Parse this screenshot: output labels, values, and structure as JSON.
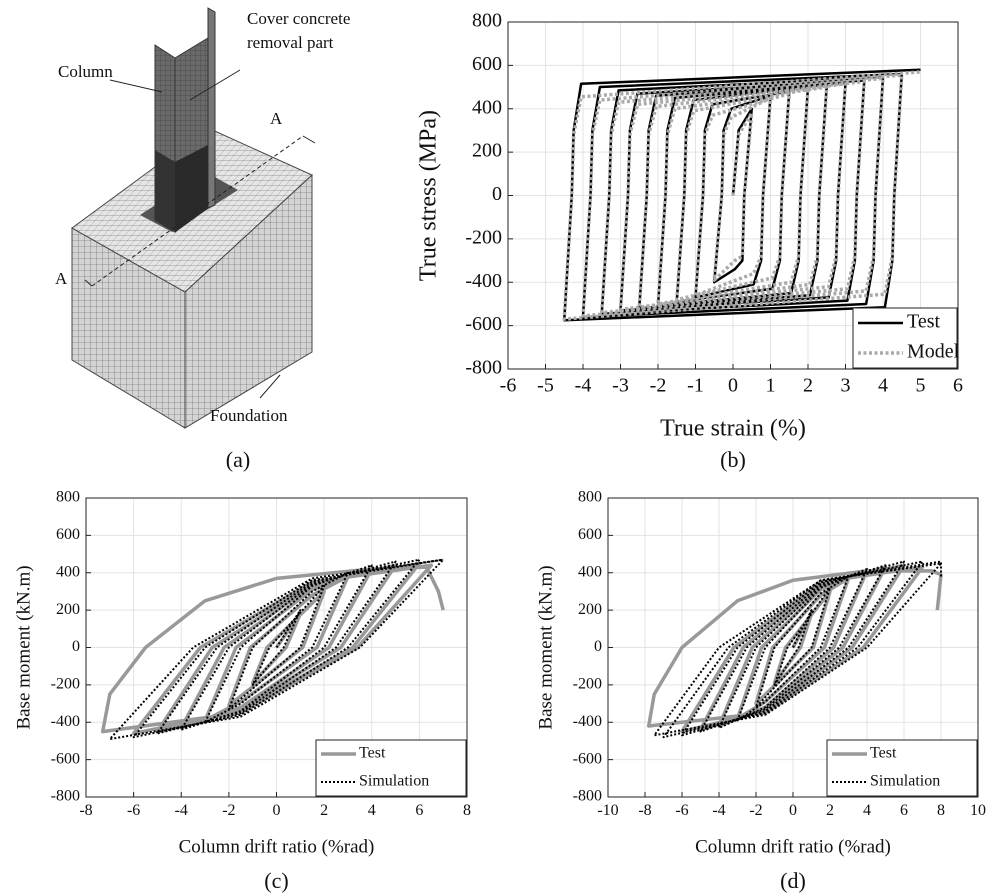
{
  "diagram": {
    "labels": {
      "column": "Column",
      "cover": [
        "Cover concrete",
        "removal part"
      ],
      "section_right": "A",
      "section_left": "A",
      "foundation": "Foundation"
    },
    "caption": "(a)"
  },
  "chart_data": [
    {
      "type": "line",
      "caption": "(b)",
      "x_label": "True strain (%)",
      "y_label": "True stress (MPa)",
      "xlim": [
        -6,
        6
      ],
      "xticks": [
        -6,
        -5,
        -4,
        -3,
        -2,
        -1,
        0,
        1,
        2,
        3,
        4,
        5,
        6
      ],
      "ylim": [
        -800,
        800
      ],
      "yticks": [
        -800,
        -600,
        -400,
        -200,
        0,
        200,
        400,
        600,
        800
      ],
      "grid": true,
      "legend": "bottom-right",
      "series": [
        {
          "name": "Test",
          "color": "#000000",
          "line_style": "solid",
          "x": [
            0,
            0.15,
            0.5,
            0.3,
            0.25,
            0.05,
            -0.5,
            -0.3,
            -0.25,
            -0.05,
            1,
            0.8,
            0.75,
            0.55,
            -1,
            -0.8,
            -0.75,
            -0.55,
            1.5,
            1.3,
            1.25,
            1.05,
            -1.5,
            -1.3,
            -1.25,
            -1.05,
            2,
            1.8,
            1.75,
            1.55,
            -2,
            -1.8,
            -1.75,
            -1.55,
            2.5,
            2.3,
            2.25,
            2.05,
            -2.5,
            -2.3,
            -2.25,
            -2.05,
            3,
            2.8,
            2.75,
            2.55,
            -3,
            -2.8,
            -2.75,
            -2.55,
            3.5,
            3.3,
            3.25,
            3.05,
            -3.5,
            -3.3,
            -3.25,
            -3.05,
            4,
            3.8,
            3.75,
            3.55,
            -4,
            -3.8,
            -3.75,
            -3.55,
            4.5,
            4.3,
            4.25,
            4.05,
            -4.5,
            -4.3,
            -4.25,
            -4.05,
            5
          ],
          "values": [
            0,
            300,
            400,
            0,
            -300,
            -340,
            -400,
            0,
            300,
            400,
            460,
            0,
            -300,
            -410,
            -470,
            0,
            300,
            420,
            480,
            0,
            -300,
            -430,
            -490,
            0,
            300,
            440,
            500,
            0,
            -300,
            -450,
            -510,
            0,
            300,
            450,
            510,
            0,
            -300,
            -460,
            -520,
            0,
            300,
            460,
            520,
            0,
            -300,
            -470,
            -530,
            0,
            300,
            470,
            530,
            0,
            -300,
            -485,
            -545,
            0,
            300,
            485,
            545,
            0,
            -300,
            -500,
            -560,
            0,
            300,
            500,
            560,
            0,
            -300,
            -515,
            -575,
            0,
            300,
            515,
            580
          ]
        },
        {
          "name": "Model",
          "color": "#aaaaaa",
          "line_style": "dotted",
          "x": [
            0,
            0.15,
            0.5,
            0.3,
            0.25,
            0.05,
            -0.5,
            -0.3,
            -0.25,
            -0.05,
            1,
            0.8,
            0.75,
            0.55,
            -1,
            -0.8,
            -0.75,
            -0.55,
            1.5,
            1.3,
            1.25,
            1.05,
            -1.5,
            -1.3,
            -1.25,
            -1.05,
            2,
            1.8,
            1.75,
            1.55,
            -2,
            -1.8,
            -1.75,
            -1.55,
            2.5,
            2.3,
            2.25,
            2.05,
            -2.5,
            -2.3,
            -2.25,
            -2.05,
            3,
            2.8,
            2.75,
            2.55,
            -3,
            -2.8,
            -2.75,
            -2.55,
            3.5,
            3.3,
            3.25,
            3.05,
            -3.5,
            -3.3,
            -3.25,
            -3.05,
            4,
            3.8,
            3.75,
            3.55,
            -4,
            -3.8,
            -3.75,
            -3.55,
            4.5,
            4.3,
            4.25,
            4.05,
            -4.5,
            -4.3,
            -4.25,
            -4.05,
            5
          ],
          "values": [
            0,
            280,
            380,
            0,
            -280,
            -300,
            -390,
            0,
            280,
            360,
            450,
            0,
            -280,
            -360,
            -460,
            0,
            280,
            370,
            470,
            0,
            -280,
            -380,
            -480,
            0,
            280,
            390,
            490,
            0,
            -280,
            -400,
            -500,
            0,
            280,
            400,
            500,
            0,
            -280,
            -410,
            -515,
            0,
            280,
            410,
            515,
            0,
            -280,
            -420,
            -525,
            0,
            280,
            420,
            525,
            0,
            -280,
            -430,
            -540,
            0,
            280,
            430,
            540,
            0,
            -280,
            -440,
            -555,
            0,
            280,
            440,
            555,
            0,
            -280,
            -455,
            -570,
            0,
            280,
            455,
            570
          ]
        }
      ]
    },
    {
      "type": "line",
      "caption": "(c)",
      "x_label": "Column drift ratio (%rad)",
      "y_label": "Base moment (kN.m)",
      "xlim": [
        -8,
        8
      ],
      "xticks": [
        -8,
        -6,
        -4,
        -2,
        0,
        2,
        4,
        6,
        8
      ],
      "ylim": [
        -800,
        800
      ],
      "yticks": [
        -800,
        -600,
        -400,
        -200,
        0,
        200,
        400,
        600,
        800
      ],
      "grid": true,
      "legend": "bottom-right",
      "series": [
        {
          "name": "Test",
          "color": "#999999",
          "line_style": "solid",
          "x": [
            0,
            1,
            0.4,
            -1,
            -0.4,
            2,
            1.1,
            -2,
            -1.1,
            1.5,
            3,
            1.7,
            -1.5,
            -3,
            -1.7,
            1.5,
            4,
            2.2,
            -1.5,
            -4,
            -2.2,
            1.5,
            5,
            2.7,
            -1.5,
            -5,
            -2.7,
            1.5,
            6,
            3.2,
            -1.5,
            -6,
            -3.2,
            1.5,
            6.5,
            3.4,
            -1.5,
            -7.3,
            -7,
            -5.5,
            -3,
            0,
            4,
            6.3,
            6.8,
            7
          ],
          "values": [
            0,
            180,
            0,
            -190,
            0,
            300,
            0,
            -310,
            0,
            280,
            380,
            0,
            -290,
            -390,
            0,
            310,
            420,
            0,
            -320,
            -430,
            0,
            330,
            440,
            0,
            -330,
            -450,
            0,
            340,
            450,
            0,
            -340,
            -460,
            0,
            350,
            440,
            0,
            -350,
            -450,
            -250,
            0,
            250,
            370,
            420,
            430,
            300,
            200
          ]
        },
        {
          "name": "Simulation",
          "color": "#000000",
          "line_style": "dotted",
          "x": [
            0,
            1,
            0.3,
            -1,
            -0.3,
            2,
            1,
            -2,
            -1,
            1.5,
            3,
            1.5,
            -1.5,
            -3,
            -1.5,
            1.5,
            4,
            2,
            -1.5,
            -4,
            -2,
            1.5,
            5,
            2.5,
            -1.5,
            -5,
            -2.5,
            1.5,
            6,
            3,
            -1.5,
            -6,
            -3,
            1.5,
            7,
            3.5,
            -1.5,
            -7,
            -3.5,
            1.5,
            7
          ],
          "values": [
            0,
            200,
            0,
            -200,
            0,
            330,
            0,
            -330,
            0,
            300,
            400,
            0,
            -300,
            -400,
            0,
            330,
            440,
            0,
            -340,
            -440,
            0,
            340,
            460,
            0,
            -350,
            -460,
            0,
            350,
            470,
            0,
            -360,
            -480,
            0,
            360,
            470,
            0,
            -370,
            -490,
            0,
            370,
            470
          ]
        }
      ]
    },
    {
      "type": "line",
      "caption": "(d)",
      "x_label": "Column drift ratio (%rad)",
      "y_label": "Base moment (kN.m)",
      "xlim": [
        -10,
        10
      ],
      "xticks": [
        -10,
        -8,
        -6,
        -4,
        -2,
        0,
        2,
        4,
        6,
        8,
        10
      ],
      "ylim": [
        -800,
        800
      ],
      "yticks": [
        -800,
        -600,
        -400,
        -200,
        0,
        200,
        400,
        600,
        800
      ],
      "grid": true,
      "legend": "bottom-right",
      "series": [
        {
          "name": "Test",
          "color": "#999999",
          "line_style": "solid",
          "x": [
            0,
            1,
            0.4,
            -1,
            -0.4,
            2,
            1.1,
            -2,
            -1.1,
            1.5,
            3,
            1.7,
            -1.5,
            -3,
            -1.7,
            1.5,
            4,
            2.2,
            -1.5,
            -4,
            -2.2,
            1.5,
            5,
            2.7,
            -1.5,
            -5,
            -2.7,
            1.5,
            6,
            3.2,
            -1.5,
            -6,
            -3.2,
            1.5,
            7,
            3.8,
            -1.5,
            -7.8,
            -7.5,
            -6,
            -3,
            0,
            4,
            7.5,
            8,
            7.8
          ],
          "values": [
            0,
            180,
            0,
            -190,
            0,
            300,
            0,
            -300,
            0,
            280,
            370,
            0,
            -290,
            -380,
            0,
            310,
            410,
            0,
            -320,
            -420,
            0,
            330,
            430,
            0,
            -330,
            -440,
            0,
            340,
            440,
            0,
            -340,
            -450,
            0,
            350,
            430,
            0,
            -350,
            -420,
            -250,
            0,
            250,
            360,
            410,
            410,
            390,
            200
          ]
        },
        {
          "name": "Simulation",
          "color": "#000000",
          "line_style": "dotted",
          "x": [
            0,
            1,
            0.3,
            -1,
            -0.3,
            2,
            1,
            -2,
            -1,
            1.5,
            3,
            1.5,
            -1.5,
            -3,
            -1.5,
            1.5,
            4,
            2,
            -1.5,
            -4,
            -2,
            1.5,
            5,
            2.5,
            -1.5,
            -5,
            -2.5,
            1.5,
            6,
            3,
            -1.5,
            -6,
            -3,
            1.5,
            7,
            3.5,
            -1.5,
            -7,
            -3.5,
            1.5,
            8,
            4,
            -1.5,
            -7.5,
            -4,
            1.5,
            8,
            8
          ],
          "values": [
            0,
            200,
            0,
            -200,
            0,
            320,
            0,
            -320,
            0,
            290,
            380,
            0,
            -290,
            -390,
            0,
            320,
            420,
            0,
            -320,
            -430,
            0,
            330,
            440,
            0,
            -330,
            -450,
            0,
            340,
            460,
            0,
            -340,
            -470,
            0,
            350,
            460,
            0,
            -350,
            -480,
            0,
            360,
            450,
            0,
            -360,
            -470,
            0,
            360,
            460,
            380
          ]
        }
      ]
    }
  ]
}
